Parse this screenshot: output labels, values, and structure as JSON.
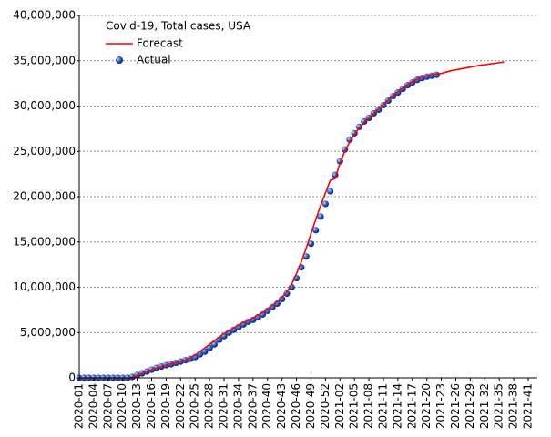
{
  "chart_data": {
    "type": "line",
    "legend_title": "Covid-19, Total cases, USA",
    "legend": "top-left",
    "grid": true,
    "categories": [
      "2020-01",
      null,
      null,
      "2020-04",
      null,
      null,
      "2020-07",
      null,
      null,
      "2020-10",
      null,
      null,
      "2020-13",
      null,
      null,
      "2020-16",
      null,
      null,
      "2020-19",
      null,
      null,
      "2020-22",
      null,
      null,
      "2020-25",
      null,
      null,
      "2020-28",
      null,
      null,
      "2020-31",
      null,
      null,
      "2020-34",
      null,
      null,
      "2020-37",
      null,
      null,
      "2020-40",
      null,
      null,
      "2020-43",
      null,
      null,
      "2020-46",
      null,
      null,
      "2020-49",
      null,
      null,
      "2020-52",
      null,
      null,
      "2021-02",
      null,
      null,
      "2021-05",
      null,
      null,
      "2021-08",
      null,
      null,
      "2021-11",
      null,
      null,
      "2021-14",
      null,
      null,
      "2021-17",
      null,
      null,
      "2021-20",
      null,
      null,
      "2021-23",
      null,
      null,
      "2021-26",
      null,
      null,
      "2021-29",
      null,
      null,
      "2021-32",
      null,
      null,
      "2021-35",
      null,
      null,
      "2021-38",
      null,
      null,
      "2021-41"
    ],
    "series": [
      {
        "name": "Forecast",
        "mode": "line",
        "color": "#ff0000",
        "values": [
          0,
          0,
          0,
          0,
          0,
          0,
          0,
          0,
          0,
          1000,
          10000,
          100000,
          300000,
          500000,
          700000,
          900000,
          1100000,
          1250000,
          1400000,
          1550000,
          1700000,
          1850000,
          2000000,
          2200000,
          2500000,
          2900000,
          3300000,
          3700000,
          4100000,
          4500000,
          4900000,
          5200000,
          5500000,
          5800000,
          6100000,
          6300000,
          6600000,
          6900000,
          7200000,
          7600000,
          8000000,
          8400000,
          8900000,
          9500000,
          10300000,
          11500000,
          12800000,
          14300000,
          15900000,
          17500000,
          19000000,
          20400000,
          21800000,
          22000000,
          23700000,
          25000000,
          26000000,
          26900000,
          27600000,
          28200000,
          28700000,
          29200000,
          29700000,
          30200000,
          30700000,
          31200000,
          31600000,
          32000000,
          32400000,
          32700000,
          33000000,
          33200000,
          33350000,
          33450000,
          33550000,
          33600000,
          33750000,
          33900000,
          34000000,
          34100000,
          34200000,
          34300000,
          34400000,
          34500000,
          34550000,
          34650000,
          34700000,
          34800000,
          34850000,
          null,
          null,
          null,
          null,
          null
        ]
      },
      {
        "name": "Actual",
        "mode": "markers",
        "color": "#1f5fd6",
        "values": [
          0,
          0,
          0,
          0,
          0,
          0,
          0,
          0,
          0,
          1000,
          10000,
          100000,
          300000,
          500000,
          700000,
          900000,
          1100000,
          1250000,
          1400000,
          1500000,
          1650000,
          1800000,
          1950000,
          2100000,
          2300000,
          2600000,
          2900000,
          3300000,
          3700000,
          4200000,
          4600000,
          5000000,
          5300000,
          5600000,
          5900000,
          6200000,
          6400000,
          6700000,
          7000000,
          7400000,
          7800000,
          8200000,
          8700000,
          9300000,
          10000000,
          11000000,
          12200000,
          13400000,
          14800000,
          16300000,
          17800000,
          19200000,
          20600000,
          22400000,
          23900000,
          25200000,
          26300000,
          27000000,
          27700000,
          28300000,
          28700000,
          29200000,
          29600000,
          30100000,
          30600000,
          31100000,
          31500000,
          31900000,
          32300000,
          32600000,
          32900000,
          33100000,
          33250000,
          33350000,
          33450000,
          null,
          null,
          null,
          null,
          null,
          null,
          null,
          null,
          null,
          null,
          null,
          null,
          null,
          null,
          null,
          null,
          null,
          null,
          null
        ]
      }
    ],
    "ylim": [
      0,
      40000000
    ],
    "yticks": [
      0,
      {
        "value": 5000000,
        "label": "5,000,000"
      },
      {
        "value": 10000000,
        "label": "10,000,000"
      },
      {
        "value": 15000000,
        "label": "15,000,000"
      },
      {
        "value": 20000000,
        "label": "20,000,000"
      },
      {
        "value": 25000000,
        "label": "25,000,000"
      },
      {
        "value": 30000000,
        "label": "30,000,000"
      },
      {
        "value": 35000000,
        "label": "35,000,000"
      },
      {
        "value": 40000000,
        "label": "40,000,000"
      }
    ]
  }
}
